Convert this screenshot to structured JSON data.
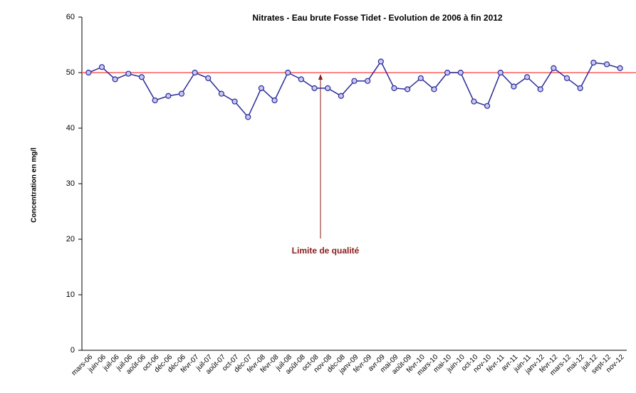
{
  "chart_data": {
    "type": "line",
    "title": "Nitrates - Eau brute Fosse Tidet - Evolution de 2006 à fin 2012",
    "y_label": "Concentration en mg/l",
    "categories": [
      "mars-06",
      "juin-06",
      "juil-06",
      "juil-06",
      "août-06",
      "oct-06",
      "déc-06",
      "déc-06",
      "févr-07",
      "juil-07",
      "août-07",
      "oct-07",
      "déc-07",
      "févr-08",
      "févr-08",
      "juil-08",
      "août-08",
      "oct-08",
      "nov-08",
      "déc-08",
      "janv-09",
      "févr-09",
      "avr-09",
      "mai-09",
      "août-09",
      "févr-10",
      "mars-10",
      "mai-10",
      "juin-10",
      "oct-10",
      "nov-10",
      "févr-11",
      "avr-11",
      "juin-11",
      "janv-12",
      "févr-12",
      "mars-12",
      "mai-12",
      "juil-12",
      "sept-12",
      "nov-12"
    ],
    "series": [
      {
        "color": "#2a2a9a",
        "values": [
          50,
          51,
          48.8,
          49.8,
          49.2,
          45,
          45.8,
          46.2,
          50,
          49,
          46.2,
          44.8,
          42,
          47.2,
          45,
          50,
          48.8,
          47.2,
          47.2,
          45.8,
          48.5,
          48.5,
          52,
          47.2,
          47,
          49,
          47,
          50,
          50,
          44.8,
          44,
          50,
          47.5,
          49.2,
          47,
          50.8,
          49,
          47.2,
          51.8,
          51.5,
          50.8
        ]
      }
    ],
    "reference_line": {
      "value": 50,
      "color": "#ff5a5a"
    },
    "annotation": {
      "text": "Limite de qualité",
      "color": "#8b1a1a"
    },
    "ylim": [
      0,
      60
    ],
    "yticks": [
      0,
      10,
      20,
      30,
      40,
      50,
      60
    ]
  }
}
